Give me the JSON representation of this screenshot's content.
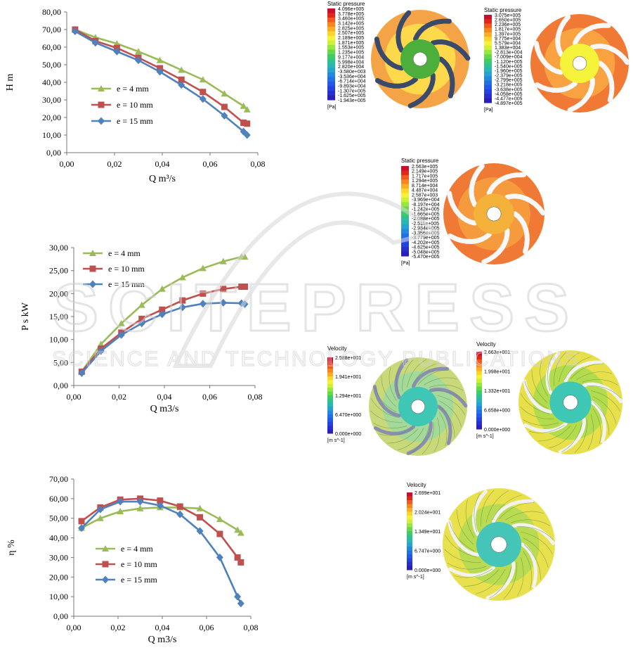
{
  "colors": {
    "e4": "#9BBB59",
    "e10": "#C0504D",
    "e15": "#4F81BD",
    "watermark": "#d9d9d9"
  },
  "watermark": {
    "main": "SCITEPRESS",
    "sub": "SCIENCE AND TECHNOLOGY PUBLICATIONS"
  },
  "chart_data": [
    {
      "type": "line",
      "xlabel": "Q m³/s",
      "ylabel": "H  m",
      "xlim": [
        0,
        0.08
      ],
      "ylim": [
        0,
        80
      ],
      "xticks": [
        "0,00",
        "0,02",
        "0,04",
        "0,06",
        "0,08"
      ],
      "yticks": [
        "0,00",
        "10,00",
        "20,00",
        "30,00",
        "40,00",
        "50,00",
        "60,00",
        "70,00",
        "80,00"
      ],
      "legend_position": "left",
      "series": [
        {
          "name": "e = 4 mm",
          "x": [
            0.0035,
            0.012,
            0.021,
            0.03,
            0.039,
            0.048,
            0.057,
            0.066,
            0.074,
            0.0755
          ],
          "y": [
            70.0,
            65.5,
            62.0,
            57.5,
            52.5,
            47.0,
            41.5,
            33.5,
            26.5,
            24.5
          ]
        },
        {
          "name": "e = 10 mm",
          "x": [
            0.0035,
            0.012,
            0.021,
            0.03,
            0.039,
            0.048,
            0.057,
            0.066,
            0.074,
            0.0755
          ],
          "y": [
            70.0,
            63.5,
            59.5,
            54.0,
            48.0,
            41.5,
            34.5,
            26.0,
            17.0,
            16.5
          ]
        },
        {
          "name": "e = 15 mm",
          "x": [
            0.0035,
            0.012,
            0.021,
            0.03,
            0.039,
            0.048,
            0.057,
            0.066,
            0.074,
            0.0755
          ],
          "y": [
            69.0,
            62.5,
            57.5,
            52.5,
            46.0,
            38.5,
            30.5,
            21.0,
            12.0,
            10.0
          ]
        }
      ]
    },
    {
      "type": "line",
      "xlabel": "Q m3/s",
      "ylabel": "P s  kW",
      "xlim": [
        0,
        0.08
      ],
      "ylim": [
        0,
        30
      ],
      "xticks": [
        "0,00",
        "0,02",
        "0,04",
        "0,06",
        "0,08"
      ],
      "yticks": [
        "0,00",
        "5,00",
        "10,00",
        "15,00",
        "20,00",
        "25,00",
        "30,00"
      ],
      "legend_position": "top-left",
      "series": [
        {
          "name": "e = 4  mm",
          "x": [
            0.0035,
            0.012,
            0.021,
            0.03,
            0.039,
            0.048,
            0.057,
            0.066,
            0.074,
            0.0755
          ],
          "y": [
            3.0,
            9.0,
            13.5,
            17.5,
            21.0,
            23.5,
            25.5,
            27.0,
            28.0,
            28.0
          ]
        },
        {
          "name": "e = 10 mm",
          "x": [
            0.0035,
            0.012,
            0.021,
            0.03,
            0.039,
            0.048,
            0.057,
            0.066,
            0.074,
            0.0755
          ],
          "y": [
            3.0,
            8.0,
            11.5,
            14.5,
            16.5,
            18.5,
            20.0,
            21.0,
            21.5,
            21.5
          ]
        },
        {
          "name": "e = 15 mm",
          "x": [
            0.0035,
            0.012,
            0.021,
            0.03,
            0.039,
            0.048,
            0.057,
            0.066,
            0.074,
            0.0755
          ],
          "y": [
            2.7,
            7.5,
            11.0,
            13.5,
            15.5,
            17.0,
            17.8,
            18.0,
            17.9,
            17.7
          ]
        }
      ]
    },
    {
      "type": "line",
      "xlabel": "Q  m3/s",
      "ylabel": "η  %",
      "xlim": [
        0,
        0.08
      ],
      "ylim": [
        0,
        70
      ],
      "xticks": [
        "0,00",
        "0,02",
        "0,04",
        "0,06",
        "0,08"
      ],
      "yticks": [
        "0,00",
        "10,00",
        "20,00",
        "30,00",
        "40,00",
        "50,00",
        "60,00",
        "70,00"
      ],
      "legend_position": "left",
      "series": [
        {
          "name": "e = 4  mm",
          "x": [
            0.0035,
            0.012,
            0.021,
            0.03,
            0.039,
            0.048,
            0.057,
            0.066,
            0.074,
            0.0755
          ],
          "y": [
            45.0,
            50.0,
            53.5,
            55.0,
            55.5,
            55.5,
            55.0,
            49.5,
            44.0,
            42.5
          ]
        },
        {
          "name": "e = 10 mm",
          "x": [
            0.0035,
            0.012,
            0.021,
            0.03,
            0.039,
            0.048,
            0.057,
            0.066,
            0.074,
            0.0755
          ],
          "y": [
            48.5,
            55.5,
            59.5,
            60.0,
            59.0,
            56.0,
            50.5,
            42.0,
            30.0,
            27.5
          ]
        },
        {
          "name": "e = 15 mm",
          "x": [
            0.0035,
            0.012,
            0.021,
            0.03,
            0.039,
            0.048,
            0.057,
            0.066,
            0.074,
            0.0755
          ],
          "y": [
            45.0,
            54.5,
            58.5,
            58.5,
            56.5,
            52.0,
            43.5,
            30.0,
            10.0,
            6.5
          ]
        }
      ]
    }
  ],
  "contours": [
    {
      "title": "Static pressure",
      "unit": "[Pa]",
      "labels": [
        "4.096e+005",
        "3.778e+005",
        "3.460e+005",
        "3.142e+005",
        "2.825e+005",
        "2.507e+005",
        "2.189e+005",
        "1.871e+005",
        "1.553e+005",
        "1.235e+005",
        "9.177e+004",
        "5.998e+004",
        "2.820e+004",
        "-3.580e+003",
        "-3.536e+004",
        "-6.714e+004",
        "-9.893e+004",
        "-1.307e+005",
        "-1.625e+005",
        "-1.943e+005"
      ],
      "bg": "#f5a347",
      "mid": "#ffe34d",
      "hub": "#4caf3c",
      "blade": "#3a4a6a"
    },
    {
      "title": "Static pressure",
      "unit": "[Pa]",
      "labels": [
        "3.075e+005",
        "2.650e+005",
        "2.236e+005",
        "1.817e+005",
        "1.397e+005",
        "9.775e+004",
        "5.579e+004",
        "1.383e+004",
        "-2.813e+004",
        "-7.009e+004",
        "-1.120e+005",
        "-1.540e+005",
        "-1.960e+005",
        "-2.379e+005",
        "-2.799e+005",
        "-3.218e+005",
        "-3.638e+005",
        "-4.058e+005",
        "-4.477e+005",
        "-4.897e+005"
      ],
      "bg": "#f07a35",
      "mid": "#f9a944",
      "hub": "#f6f43a",
      "blade": "#f8f8f8"
    },
    {
      "title": "Static pressure",
      "unit": "[Pa]",
      "labels": [
        "2.563e+005",
        "2.149e+005",
        "1.717e+005",
        "1.294e+005",
        "8.714e+004",
        "4.487e+004",
        "2.587e+003",
        "-3.969e+004",
        "-8.197e+004",
        "-1.242e+005",
        "-1.665e+005",
        "-2.088e+005",
        "-2.511e+005",
        "-2.934e+005",
        "-3.356e+005",
        "-3.779e+005",
        "-4.202e+005",
        "-4.625e+005",
        "-5.048e+005",
        "-5.470e+005"
      ],
      "bg": "#f07a35",
      "mid": "#f7a040",
      "hub": "#f5b23a",
      "blade": "#f8f8f8"
    },
    {
      "title": "Velocity",
      "unit": "[m s^-1]",
      "labels": [
        "2.588e+001",
        "1.941e+001",
        "1.294e+001",
        "6.470e+000",
        "0.000e+000"
      ],
      "bg": "#c9d97a",
      "mid": "#9dd8a0",
      "hub": "#3fc7b6",
      "blade": "#8a8fb0"
    },
    {
      "title": "Velocity",
      "unit": "[m s^-1]",
      "labels": [
        "2.663e+001",
        "1.998e+001",
        "1.332e+001",
        "6.658e+000",
        "0.000e+000"
      ],
      "bg": "#e7e04a",
      "mid": "#a9d94f",
      "hub": "#3fc7b6",
      "blade": "#f2f2f2"
    },
    {
      "title": "Velocity",
      "unit": "[m s^-1]",
      "labels": [
        "2.699e+001",
        "2.024e+001",
        "1.349e+001",
        "6.747e+000",
        "0.000e+000"
      ],
      "bg": "#e9e04d",
      "mid": "#b0d954",
      "hub": "#45c4b8",
      "blade": "#f2f2f2"
    }
  ]
}
